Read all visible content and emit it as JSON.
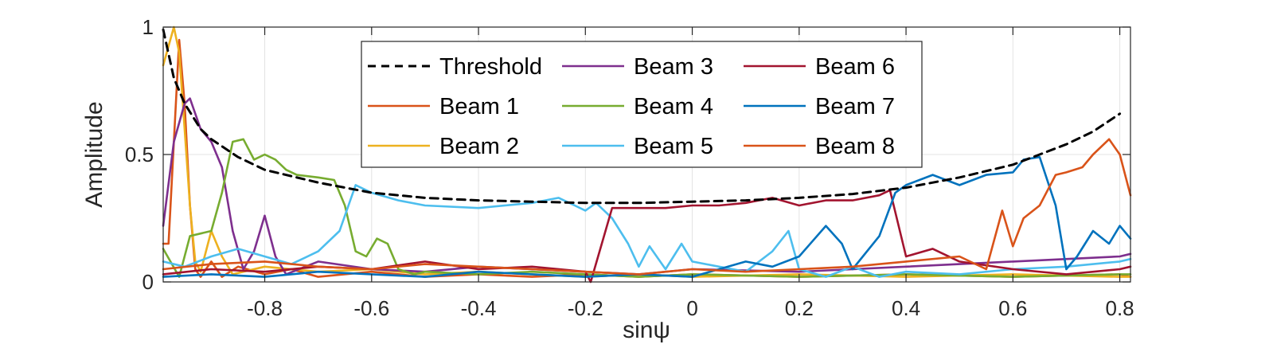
{
  "chart_data": {
    "type": "line",
    "xlabel": "sinψ",
    "ylabel": "Amplitude",
    "xlim": [
      -0.99,
      0.82
    ],
    "ylim": [
      0,
      1
    ],
    "xticks": [
      -0.8,
      -0.6,
      -0.4,
      -0.2,
      0,
      0.2,
      0.4,
      0.6,
      0.8
    ],
    "xtick_labels": [
      "-0.8",
      "-0.6",
      "-0.4",
      "-0.2",
      "0",
      "0.2",
      "0.4",
      "0.6",
      "0.8"
    ],
    "yticks": [
      0,
      0.5,
      1
    ],
    "ytick_labels": [
      "0",
      "0.5",
      "1"
    ],
    "grid": true,
    "legend_position": "top-center",
    "legend_columns": 3,
    "series": [
      {
        "name": "Threshold",
        "color": "#000000",
        "style": "dashed",
        "x": [
          -0.99,
          -0.97,
          -0.95,
          -0.92,
          -0.9,
          -0.85,
          -0.8,
          -0.7,
          -0.6,
          -0.5,
          -0.4,
          -0.3,
          -0.2,
          -0.1,
          0,
          0.1,
          0.2,
          0.3,
          0.4,
          0.5,
          0.6,
          0.65,
          0.7,
          0.75,
          0.8
        ],
        "values": [
          0.99,
          0.8,
          0.7,
          0.6,
          0.56,
          0.49,
          0.44,
          0.39,
          0.35,
          0.33,
          0.32,
          0.315,
          0.31,
          0.31,
          0.315,
          0.32,
          0.33,
          0.345,
          0.37,
          0.41,
          0.46,
          0.5,
          0.54,
          0.59,
          0.66
        ]
      },
      {
        "name": "Beam 1",
        "color": "#d95319",
        "style": "solid",
        "x": [
          -0.99,
          -0.98,
          -0.96,
          -0.95,
          -0.94,
          -0.93,
          -0.92,
          -0.9,
          -0.88,
          -0.85,
          -0.8,
          -0.75,
          -0.7,
          -0.6,
          -0.5,
          -0.4,
          -0.3,
          -0.2,
          -0.1,
          0,
          0.2,
          0.4,
          0.6,
          0.8,
          0.82
        ],
        "values": [
          0.15,
          0.15,
          0.95,
          0.7,
          0.3,
          0.05,
          0.02,
          0.08,
          0.02,
          0.06,
          0.03,
          0.05,
          0.02,
          0.04,
          0.02,
          0.03,
          0.02,
          0.03,
          0.02,
          0.03,
          0.02,
          0.03,
          0.02,
          0.03,
          0.02
        ]
      },
      {
        "name": "Beam 2",
        "color": "#edb120",
        "style": "solid",
        "x": [
          -0.99,
          -0.97,
          -0.96,
          -0.95,
          -0.94,
          -0.93,
          -0.92,
          -0.9,
          -0.88,
          -0.86,
          -0.8,
          -0.7,
          -0.6,
          -0.5,
          -0.4,
          -0.3,
          -0.2,
          -0.1,
          0,
          0.2,
          0.4,
          0.6,
          0.8,
          0.82
        ],
        "values": [
          0.85,
          1.0,
          0.9,
          0.6,
          0.3,
          0.08,
          0.04,
          0.2,
          0.1,
          0.03,
          0.06,
          0.04,
          0.05,
          0.03,
          0.04,
          0.03,
          0.02,
          0.03,
          0.02,
          0.03,
          0.02,
          0.03,
          0.02,
          0.02
        ]
      },
      {
        "name": "Beam 3",
        "color": "#7e2f8e",
        "style": "solid",
        "x": [
          -0.99,
          -0.97,
          -0.95,
          -0.94,
          -0.92,
          -0.9,
          -0.88,
          -0.86,
          -0.84,
          -0.82,
          -0.8,
          -0.78,
          -0.76,
          -0.7,
          -0.6,
          -0.5,
          -0.4,
          -0.3,
          -0.2,
          -0.1,
          0,
          0.2,
          0.4,
          0.6,
          0.8,
          0.82
        ],
        "values": [
          0.22,
          0.55,
          0.7,
          0.72,
          0.6,
          0.55,
          0.45,
          0.2,
          0.05,
          0.12,
          0.26,
          0.1,
          0.03,
          0.08,
          0.05,
          0.04,
          0.06,
          0.05,
          0.04,
          0.03,
          0.05,
          0.04,
          0.06,
          0.08,
          0.1,
          0.11
        ]
      },
      {
        "name": "Beam 4",
        "color": "#77ac30",
        "style": "solid",
        "x": [
          -0.99,
          -0.96,
          -0.94,
          -0.92,
          -0.9,
          -0.88,
          -0.86,
          -0.84,
          -0.82,
          -0.8,
          -0.78,
          -0.76,
          -0.74,
          -0.7,
          -0.67,
          -0.65,
          -0.63,
          -0.61,
          -0.59,
          -0.57,
          -0.55,
          -0.52,
          -0.5,
          -0.4,
          -0.3,
          -0.2,
          -0.1,
          0,
          0.2,
          0.4,
          0.6,
          0.8,
          0.82
        ],
        "values": [
          0.13,
          0.02,
          0.18,
          0.19,
          0.2,
          0.35,
          0.55,
          0.56,
          0.48,
          0.5,
          0.48,
          0.44,
          0.42,
          0.41,
          0.4,
          0.3,
          0.12,
          0.1,
          0.17,
          0.15,
          0.05,
          0.03,
          0.04,
          0.03,
          0.04,
          0.03,
          0.02,
          0.03,
          0.02,
          0.03,
          0.02,
          0.03,
          0.03
        ]
      },
      {
        "name": "Beam 5",
        "color": "#4dbeee",
        "style": "solid",
        "x": [
          -0.99,
          -0.95,
          -0.9,
          -0.85,
          -0.8,
          -0.75,
          -0.7,
          -0.66,
          -0.63,
          -0.6,
          -0.55,
          -0.5,
          -0.4,
          -0.3,
          -0.25,
          -0.22,
          -0.2,
          -0.18,
          -0.15,
          -0.12,
          -0.1,
          -0.08,
          -0.05,
          -0.02,
          0,
          0.05,
          0.1,
          0.15,
          0.18,
          0.2,
          0.25,
          0.3,
          0.35,
          0.4,
          0.5,
          0.6,
          0.7,
          0.8,
          0.82
        ],
        "values": [
          0.08,
          0.06,
          0.1,
          0.13,
          0.1,
          0.07,
          0.12,
          0.2,
          0.38,
          0.35,
          0.32,
          0.3,
          0.29,
          0.31,
          0.33,
          0.3,
          0.28,
          0.31,
          0.25,
          0.15,
          0.06,
          0.14,
          0.05,
          0.15,
          0.08,
          0.06,
          0.04,
          0.12,
          0.2,
          0.05,
          0.02,
          0.06,
          0.02,
          0.04,
          0.03,
          0.05,
          0.06,
          0.08,
          0.09
        ]
      },
      {
        "name": "Beam 6",
        "color": "#a2142f",
        "style": "solid",
        "x": [
          -0.99,
          -0.9,
          -0.8,
          -0.7,
          -0.6,
          -0.5,
          -0.4,
          -0.3,
          -0.2,
          -0.19,
          -0.15,
          -0.1,
          -0.05,
          0,
          0.05,
          0.1,
          0.15,
          0.2,
          0.25,
          0.3,
          0.35,
          0.37,
          0.4,
          0.45,
          0.5,
          0.6,
          0.7,
          0.8,
          0.82
        ],
        "values": [
          0.03,
          0.05,
          0.04,
          0.06,
          0.05,
          0.08,
          0.05,
          0.06,
          0.04,
          0.0,
          0.29,
          0.29,
          0.29,
          0.3,
          0.3,
          0.31,
          0.33,
          0.3,
          0.32,
          0.32,
          0.34,
          0.36,
          0.1,
          0.13,
          0.08,
          0.05,
          0.03,
          0.05,
          0.06
        ]
      },
      {
        "name": "Beam 7",
        "color": "#0072bd",
        "style": "solid",
        "x": [
          -0.99,
          -0.9,
          -0.8,
          -0.7,
          -0.6,
          -0.5,
          -0.4,
          -0.3,
          -0.2,
          -0.1,
          0,
          0.1,
          0.15,
          0.2,
          0.25,
          0.28,
          0.3,
          0.35,
          0.38,
          0.4,
          0.45,
          0.5,
          0.55,
          0.6,
          0.62,
          0.65,
          0.68,
          0.7,
          0.72,
          0.75,
          0.78,
          0.8,
          0.82
        ],
        "values": [
          0.02,
          0.03,
          0.02,
          0.04,
          0.03,
          0.02,
          0.04,
          0.03,
          0.02,
          0.03,
          0.02,
          0.08,
          0.06,
          0.1,
          0.22,
          0.15,
          0.05,
          0.18,
          0.35,
          0.38,
          0.42,
          0.38,
          0.42,
          0.43,
          0.48,
          0.49,
          0.3,
          0.05,
          0.1,
          0.2,
          0.15,
          0.22,
          0.17
        ]
      },
      {
        "name": "Beam 8",
        "color": "#d95319",
        "style": "solid",
        "x": [
          -0.99,
          -0.9,
          -0.8,
          -0.7,
          -0.6,
          -0.5,
          -0.4,
          -0.3,
          -0.2,
          -0.1,
          0,
          0.1,
          0.2,
          0.3,
          0.4,
          0.5,
          0.55,
          0.58,
          0.6,
          0.62,
          0.65,
          0.68,
          0.7,
          0.73,
          0.75,
          0.78,
          0.8,
          0.82
        ],
        "values": [
          0.05,
          0.07,
          0.08,
          0.06,
          0.05,
          0.07,
          0.06,
          0.05,
          0.04,
          0.03,
          0.05,
          0.04,
          0.05,
          0.06,
          0.08,
          0.1,
          0.05,
          0.28,
          0.14,
          0.25,
          0.3,
          0.42,
          0.43,
          0.45,
          0.5,
          0.56,
          0.5,
          0.34
        ]
      }
    ]
  }
}
